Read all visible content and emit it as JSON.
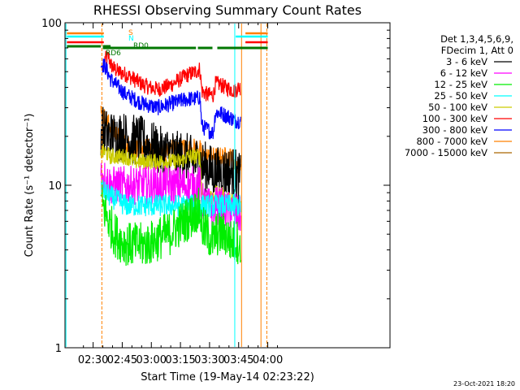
{
  "chart_data": {
    "type": "line",
    "title": "RHESSI Observing Summary Count Rates",
    "xlabel": "Start Time (19-May-14 02:23:22)",
    "ylabel": "Count Rate (s⁻¹ detector⁻¹)",
    "y_scale": "log",
    "ylim": [
      1,
      100
    ],
    "y_ticks": [
      {
        "value": 1,
        "label": "1"
      },
      {
        "value": 10,
        "label": "10"
      },
      {
        "value": 100,
        "label": "100"
      }
    ],
    "x_range_min": [
      -7.5,
      160
    ],
    "x_ticks": [
      {
        "value": 7,
        "label": "02:30"
      },
      {
        "value": 22,
        "label": "02:45"
      },
      {
        "value": 37,
        "label": "03:00"
      },
      {
        "value": 52,
        "label": "03:15"
      },
      {
        "value": 67,
        "label": "03:30"
      },
      {
        "value": 82,
        "label": "03:45"
      },
      {
        "value": 97,
        "label": "04:00"
      }
    ],
    "legend": {
      "header": [
        "Det 1,3,4,5,6,9,",
        "FDecim 1, Att 0"
      ],
      "entries": [
        {
          "label": "3 - 6 keV",
          "color": "#000000"
        },
        {
          "label": "6 - 12 keV",
          "color": "#ff00ff"
        },
        {
          "label": "12 - 25 keV",
          "color": "#00ee00"
        },
        {
          "label": "25 - 50 keV",
          "color": "#00ffff"
        },
        {
          "label": "50 - 100 keV",
          "color": "#cccc00"
        },
        {
          "label": "100 - 300 keV",
          "color": "#ff0000"
        },
        {
          "label": "300 - 800 keV",
          "color": "#0000ff"
        },
        {
          "label": "800 - 7000 keV",
          "color": "#ff8000"
        },
        {
          "label": "7000 - 15000 keV",
          "color": "#aa6600"
        }
      ],
      "placement": "right"
    },
    "flags": [
      {
        "label": "S",
        "color": "#ff8000",
        "segments": [
          [
            -6.5,
            12.5
          ],
          [
            85.5,
            97
          ]
        ]
      },
      {
        "label": "N",
        "color": "#00ffff",
        "segments": [
          [
            -6.5,
            12.5
          ],
          [
            80.5,
            97
          ]
        ]
      },
      {
        "label": "",
        "color": "#ff0000",
        "segments": [
          [
            -6.5,
            12.5
          ],
          [
            85.5,
            97
          ]
        ]
      },
      {
        "label": "RD6",
        "color": "#007700",
        "segments": [
          [
            -6.5,
            11
          ],
          [
            12,
            16
          ]
        ]
      },
      {
        "label": "RD0",
        "color": "#007700",
        "segments": [
          [
            12,
            60
          ],
          [
            61,
            68.5
          ],
          [
            71,
            97
          ]
        ]
      }
    ],
    "vlines": [
      {
        "x": -7,
        "color": "#00ffff"
      },
      {
        "x": 11.5,
        "color": "#ff8000",
        "dashed": true
      },
      {
        "x": 80,
        "color": "#00ffff"
      },
      {
        "x": 83.5,
        "color": "#ff8000"
      },
      {
        "x": 93.5,
        "color": "#ff8000"
      },
      {
        "x": 96.5,
        "color": "#ff8000",
        "dashed": true
      }
    ],
    "series": [
      {
        "color": "#ff0000",
        "x": [
          13,
          14,
          15,
          16,
          18,
          20,
          24,
          28,
          32,
          36,
          40,
          44,
          48,
          52,
          56,
          60,
          62,
          63,
          66,
          69,
          70,
          72,
          75,
          78,
          80,
          82,
          83
        ],
        "values": [
          60,
          60,
          62,
          55,
          52,
          50,
          48,
          45,
          42,
          40,
          39,
          40,
          42,
          45,
          48,
          50,
          52,
          38,
          36,
          36,
          42,
          42,
          40,
          39,
          38,
          40,
          40
        ],
        "noise": 0.05
      },
      {
        "color": "#0000ff",
        "x": [
          11,
          13,
          16,
          20,
          24,
          28,
          32,
          36,
          40,
          44,
          48,
          52,
          56,
          60,
          62,
          63,
          66,
          69,
          70,
          72,
          75,
          78,
          80,
          82,
          83
        ],
        "values": [
          56,
          54,
          45,
          40,
          36,
          34,
          32,
          31,
          30,
          31,
          32,
          33,
          34,
          34,
          35,
          23,
          22,
          21,
          28,
          28,
          27,
          26,
          25,
          25,
          25
        ],
        "noise": 0.05
      },
      {
        "color": "#ff8000",
        "x": [
          11,
          13,
          15,
          17,
          20,
          24,
          28,
          32,
          36,
          40,
          44,
          48,
          52,
          56,
          60,
          62,
          63,
          66,
          69,
          70,
          72,
          75,
          78,
          80,
          82,
          83
        ],
        "values": [
          28,
          26,
          24,
          22,
          20,
          18,
          17,
          17,
          17,
          16,
          16,
          17,
          17,
          17,
          17,
          17,
          15,
          15,
          15,
          15,
          15,
          15,
          15,
          14,
          13,
          13
        ],
        "noise": 0.06
      },
      {
        "color": "#000000",
        "x": [
          11,
          13,
          15,
          18,
          22,
          26,
          30,
          34,
          38,
          42,
          46,
          50,
          54,
          58,
          60,
          62,
          63,
          66,
          69,
          70,
          72,
          75,
          78,
          80,
          82,
          83
        ],
        "values": [
          22,
          21,
          20,
          20,
          20,
          19,
          19,
          18,
          17,
          16,
          16,
          15,
          15,
          14,
          14,
          14,
          13,
          13,
          12,
          12,
          12,
          12,
          12,
          12,
          11,
          11
        ],
        "noise": 0.16
      },
      {
        "color": "#cccc00",
        "x": [
          11,
          13,
          16,
          20,
          24,
          28,
          32,
          36,
          40,
          44,
          48,
          52,
          56,
          60,
          62,
          63,
          66,
          69,
          70,
          72,
          75,
          78,
          80,
          82,
          83
        ],
        "values": [
          16,
          16,
          15,
          15,
          15,
          14,
          14,
          14,
          14,
          14,
          14,
          14,
          15,
          15,
          15,
          9,
          8.5,
          8,
          9,
          9,
          8.5,
          8,
          8,
          7.5,
          7.5
        ],
        "noise": 0.05
      },
      {
        "color": "#ff00ff",
        "x": [
          11,
          13,
          16,
          20,
          24,
          28,
          32,
          36,
          40,
          44,
          48,
          52,
          56,
          60,
          62,
          63,
          66,
          69,
          70,
          72,
          75,
          78,
          80,
          82,
          83
        ],
        "values": [
          12,
          11,
          10,
          10,
          10,
          10,
          10,
          10,
          10,
          10,
          10,
          10,
          10,
          10,
          10,
          8,
          7.5,
          7,
          7.5,
          7.5,
          7,
          7,
          7,
          6.5,
          6.5
        ],
        "noise": 0.12
      },
      {
        "color": "#00ffff",
        "x": [
          11,
          13,
          16,
          20,
          24,
          28,
          32,
          36,
          40,
          44,
          48,
          52,
          56,
          60,
          62,
          63,
          66,
          69,
          70,
          72,
          75,
          78,
          80,
          82,
          83
        ],
        "values": [
          10,
          9,
          8.5,
          8,
          7.5,
          7.5,
          7.5,
          7.5,
          7.5,
          7.5,
          7.5,
          7.5,
          7.5,
          7.5,
          7.5,
          7.5,
          7.5,
          7.5,
          7.5,
          7.5,
          7.5,
          7.5,
          7.5,
          7.5,
          7.5
        ],
        "noise": 0.07
      },
      {
        "color": "#00ee00",
        "x": [
          11,
          13,
          15,
          18,
          22,
          26,
          30,
          34,
          38,
          42,
          46,
          50,
          54,
          58,
          60,
          62,
          63,
          66,
          69,
          70,
          72,
          75,
          78,
          80,
          82,
          83
        ],
        "values": [
          8,
          7,
          6,
          5,
          4.5,
          4.3,
          4.3,
          4.3,
          4.5,
          4.8,
          5,
          5.5,
          6,
          6.5,
          7,
          7,
          5.5,
          5,
          4.5,
          5,
          5,
          5,
          4.5,
          4.5,
          4.5,
          3.5
        ],
        "noise": 0.14
      }
    ]
  },
  "footer_timestamp": "23-Oct-2021 18:20"
}
